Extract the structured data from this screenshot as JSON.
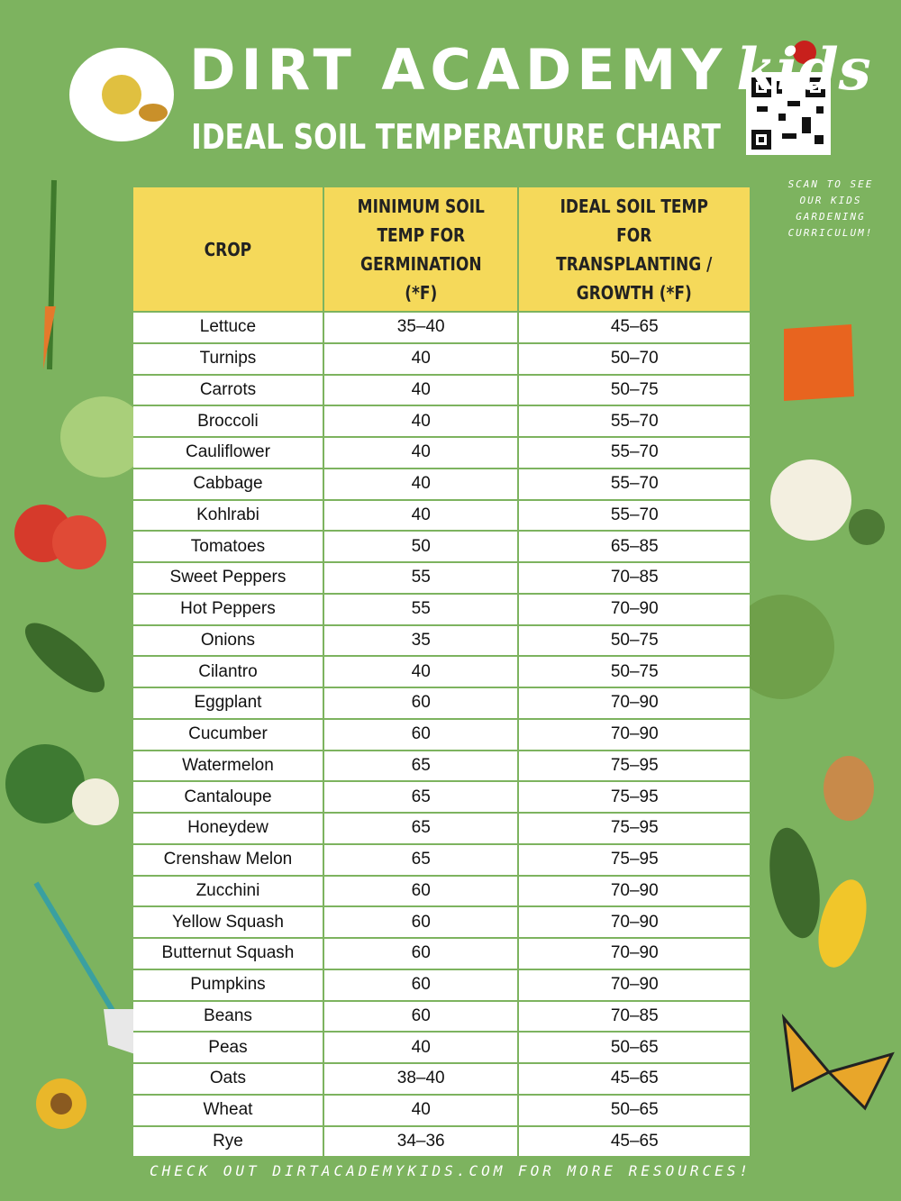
{
  "header": {
    "brand": "DIRT ACADEMY",
    "brand_script": "kids",
    "title": "IDEAL SOIL TEMPERATURE CHART",
    "qr_caption": "SCAN TO SEE OUR KIDS GARDENING CURRICULUM!"
  },
  "table": {
    "columns": [
      "CROP",
      "MINIMUM SOIL TEMP FOR GERMINATION (*F)",
      "IDEAL SOIL TEMP FOR TRANSPLANTING / GROWTH (*F)"
    ],
    "rows": [
      [
        "Lettuce",
        "35–40",
        "45–65"
      ],
      [
        "Turnips",
        "40",
        "50–70"
      ],
      [
        "Carrots",
        "40",
        "50–75"
      ],
      [
        "Broccoli",
        "40",
        "55–70"
      ],
      [
        "Cauliflower",
        "40",
        "55–70"
      ],
      [
        "Cabbage",
        "40",
        "55–70"
      ],
      [
        "Kohlrabi",
        "40",
        "55–70"
      ],
      [
        "Tomatoes",
        "50",
        "65–85"
      ],
      [
        "Sweet Peppers",
        "55",
        "70–85"
      ],
      [
        "Hot Peppers",
        "55",
        "70–90"
      ],
      [
        "Onions",
        "35",
        "50–75"
      ],
      [
        "Cilantro",
        "40",
        "50–75"
      ],
      [
        "Eggplant",
        "60",
        "70–90"
      ],
      [
        "Cucumber",
        "60",
        "70–90"
      ],
      [
        "Watermelon",
        "65",
        "75–95"
      ],
      [
        "Cantaloupe",
        "65",
        "75–95"
      ],
      [
        "Honeydew",
        "65",
        "75–95"
      ],
      [
        "Crenshaw Melon",
        "65",
        "75–95"
      ],
      [
        "Zucchini",
        "60",
        "70–90"
      ],
      [
        "Yellow Squash",
        "60",
        "70–90"
      ],
      [
        "Butternut Squash",
        "60",
        "70–90"
      ],
      [
        "Pumpkins",
        "60",
        "70–90"
      ],
      [
        "Beans",
        "60",
        "70–85"
      ],
      [
        "Peas",
        "40",
        "50–65"
      ],
      [
        "Oats",
        "38–40",
        "45–65"
      ],
      [
        "Wheat",
        "40",
        "50–65"
      ],
      [
        "Rye",
        "34–36",
        "45–65"
      ]
    ]
  },
  "footer": {
    "text": "CHECK OUT DIRTACADEMYKIDS.COM FOR MORE RESOURCES!"
  }
}
